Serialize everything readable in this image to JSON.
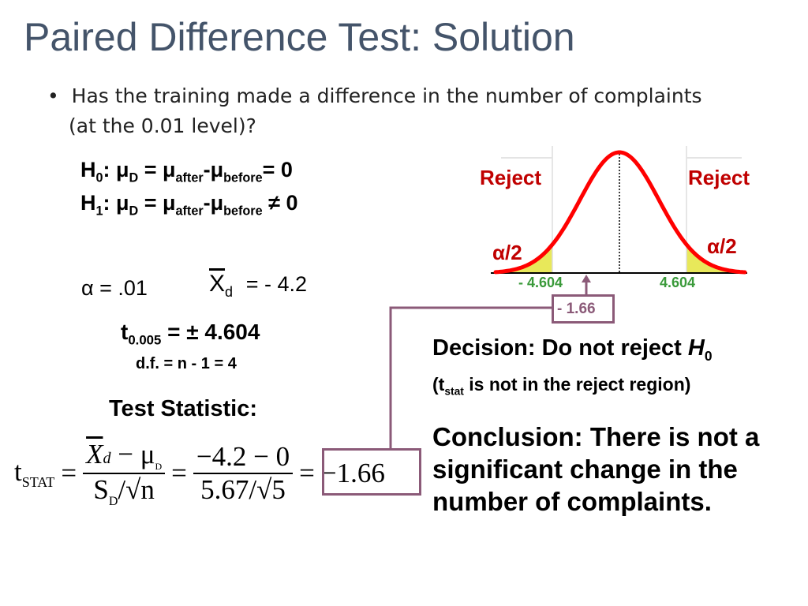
{
  "title": "Paired Difference Test: Solution",
  "bullet": {
    "line1": "Has the training made a difference in the number of complaints",
    "line2": "(at the 0.01 level)?"
  },
  "h0": {
    "label": "H",
    "sub": "0",
    "text1": ":  μ",
    "d": "D",
    "eq": " = μ",
    "after": "after",
    "minus": "-μ",
    "before": "before",
    "end": "= 0"
  },
  "h1": {
    "label": "H",
    "sub": "1",
    "text1": ":  μ",
    "d": "D",
    "eq": " = μ",
    "after": "after",
    "minus": "-μ",
    "before": "before",
    "end": " ≠ 0"
  },
  "alpha": "α = .01",
  "xbar": {
    "x": "X",
    "sub": "d",
    "val": "= - 4.2"
  },
  "tcrit": {
    "t": "t",
    "sub": "0.005",
    "val": " = ± 4.604",
    "df": "d.f. = n - 1 = 4"
  },
  "test_stat_label": "Test Statistic:",
  "formula": {
    "t": "t",
    "tsub": "STAT",
    "eq": "=",
    "num1": "X",
    "num1sub": "d",
    "num1b": " − μ",
    "num1bsub": "D",
    "den1": "S",
    "den1sub": "D",
    "den1b": "/√n",
    "num2": "−4.2 − 0",
    "den2": "5.67/√5",
    "result": "−1.66"
  },
  "chart": {
    "reject_left": "Reject",
    "reject_right": "Reject",
    "alpha_left": "α/2",
    "alpha_right": "α/2",
    "crit_left": "- 4.604",
    "crit_right": "4.604",
    "tstat": "- 1.66",
    "colors": {
      "curve": "#ff0000",
      "tail": "#e8e85a",
      "crit": "#3a9a3a",
      "marker": "#8b5a78"
    }
  },
  "decision": {
    "line1": "Decision: Do not reject ",
    "h": "H",
    "hsub": "0",
    "line2a": "(t",
    "line2sub": "stat",
    "line2b": " is not in the reject region)"
  },
  "conclusion": [
    "Conclusion: There is not a",
    "significant change in the",
    "number of complaints."
  ]
}
